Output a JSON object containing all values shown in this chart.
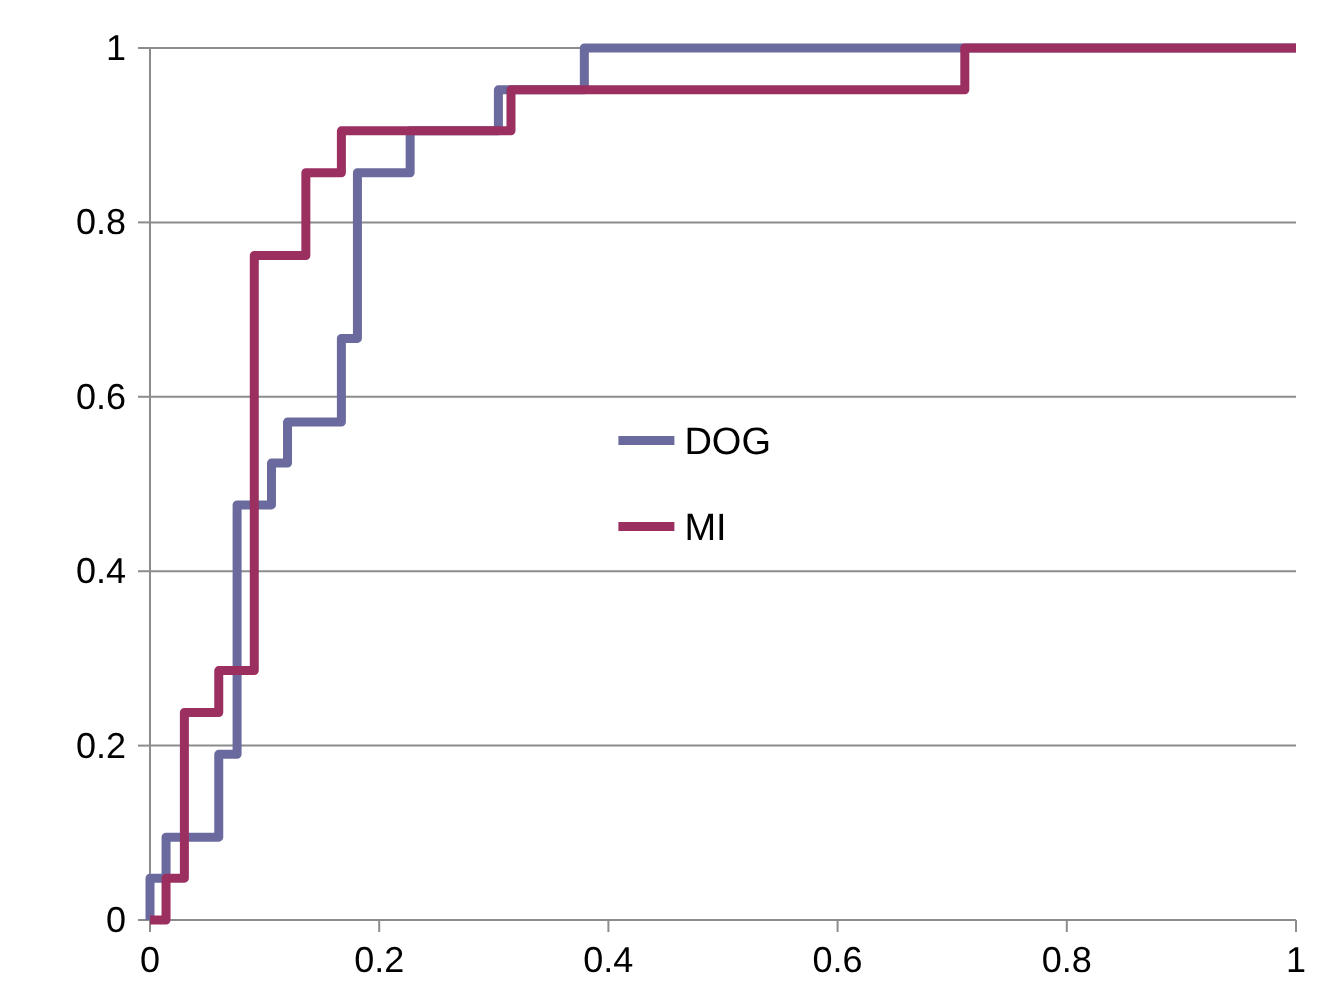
{
  "chart_data": {
    "type": "step",
    "xlim": [
      0,
      1
    ],
    "ylim": [
      0,
      1
    ],
    "xticks": [
      0,
      0.2,
      0.4,
      0.6,
      0.8,
      1
    ],
    "yticks": [
      0,
      0.2,
      0.4,
      0.6,
      0.8,
      1
    ],
    "grid": "y",
    "legend": "center",
    "line_style": "solid",
    "marker": "none",
    "series": [
      {
        "name": "DOG",
        "color": "#6a6a9e",
        "x": [
          0,
          0,
          0.014,
          0.06,
          0.076,
          0.106,
          0.12,
          0.167,
          0.181,
          0.227,
          0.304,
          0.379,
          1
        ],
        "values": [
          0,
          0.048,
          0.095,
          0.19,
          0.476,
          0.524,
          0.571,
          0.667,
          0.857,
          0.905,
          0.952,
          1,
          1
        ]
      },
      {
        "name": "MI",
        "color": "#9b3060",
        "x": [
          0,
          0.014,
          0.03,
          0.06,
          0.091,
          0.136,
          0.167,
          0.315,
          0.711,
          1
        ],
        "values": [
          0,
          0.048,
          0.238,
          0.286,
          0.762,
          0.857,
          0.905,
          0.952,
          1,
          1
        ]
      }
    ]
  }
}
